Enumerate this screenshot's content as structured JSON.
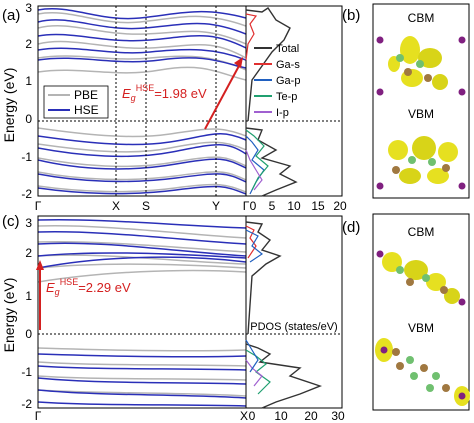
{
  "panels": {
    "a": {
      "label": "(a)",
      "ylabel": "Energy (eV)",
      "yticks": [
        "3",
        "2",
        "1",
        "0",
        "-1",
        "-2"
      ],
      "kpoints": [
        "Γ",
        "X",
        "S",
        "Y",
        "Γ"
      ],
      "legend": [
        "PBE",
        "HSE"
      ],
      "gap_symbol": "E",
      "gap_sub": "g",
      "gap_sup": "HSE",
      "gap_value": "=1.98 eV",
      "pdos_ticks": [
        "0",
        "5",
        "10",
        "15",
        "20"
      ],
      "pdos_legend": [
        "Total",
        "Ga-s",
        "Ga-p",
        "Te-p",
        "I-p"
      ]
    },
    "b": {
      "label": "(b)",
      "top": "CBM",
      "bottom": "VBM"
    },
    "c": {
      "label": "(c)",
      "ylabel": "Energy (eV)",
      "yticks": [
        "3",
        "2",
        "1",
        "0",
        "-1",
        "-2"
      ],
      "kpoints": [
        "Γ",
        "X"
      ],
      "gap_symbol": "E",
      "gap_sub": "g",
      "gap_sup": "HSE",
      "gap_value": "=2.29 eV",
      "pdos_label": "PDOS (states/eV)",
      "pdos_ticks": [
        "0",
        "10",
        "20",
        "30"
      ]
    },
    "d": {
      "label": "(d)",
      "top": "CBM",
      "bottom": "VBM"
    }
  },
  "colors": {
    "pbe": "#b4b4b4",
    "hse": "#2a2fb8",
    "arrow": "#d42020",
    "total": "#333333",
    "ga_s": "#e03030",
    "ga_p": "#2060c0",
    "te_p": "#20a070",
    "i_p": "#a060d0",
    "orbital": "#e6e020",
    "ga_atom": "#70c070",
    "te_atom": "#a07840",
    "i_atom": "#802080"
  }
}
